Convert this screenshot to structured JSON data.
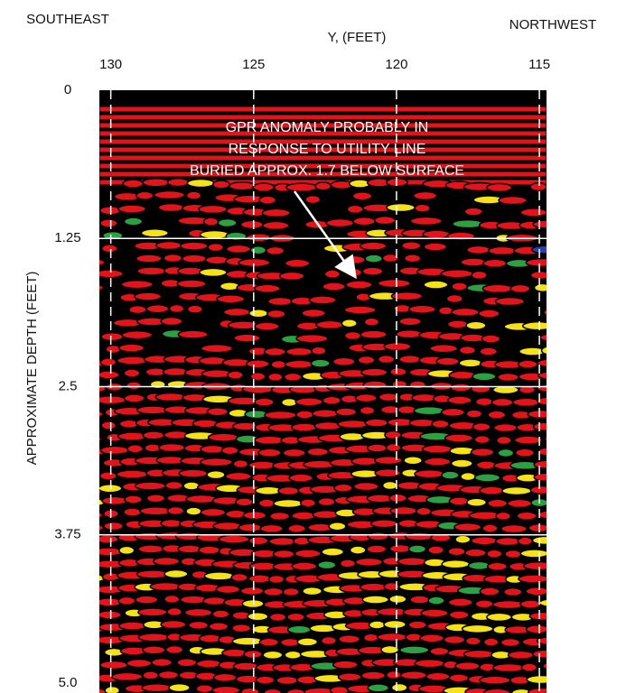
{
  "header": {
    "left": "SOUTHEAST",
    "right": "NORTHWEST"
  },
  "x_axis": {
    "label": "Y, (FEET)",
    "lim": [
      130.4,
      114.75
    ],
    "ticks": [
      130,
      125,
      120,
      115
    ]
  },
  "y_axis": {
    "label": "APPROXIMATE DEPTH (FEET)",
    "lim": [
      0,
      5
    ],
    "ticks": [
      0,
      1.25,
      2.5,
      3.75,
      {
        "value": 5,
        "label": "5.0"
      }
    ]
  },
  "annotation": {
    "lines": [
      "GPR ANOMALY PROBABLY IN",
      "RESPONSE TO UTILITY LINE",
      "BURIED APPROX. 1.7 BELOW SURFACE"
    ]
  }
}
